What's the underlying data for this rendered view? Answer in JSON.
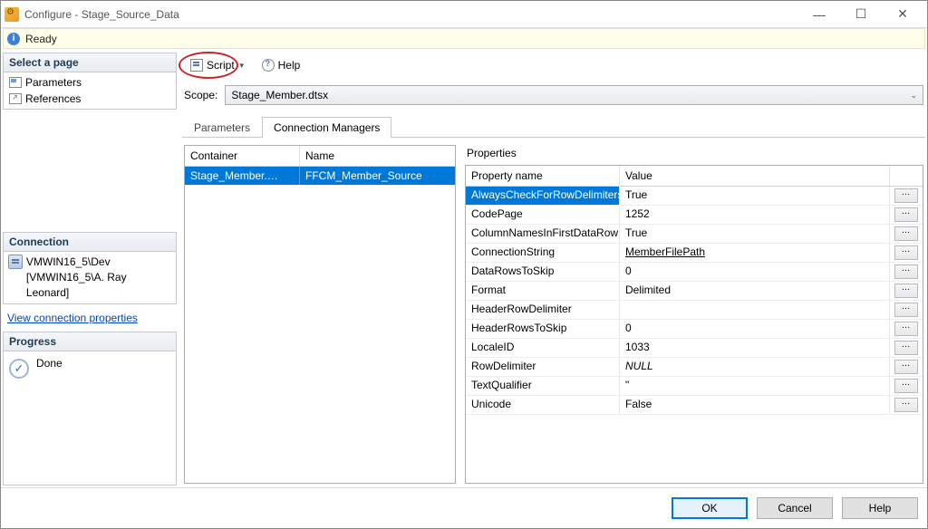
{
  "window": {
    "title": "Configure - Stage_Source_Data"
  },
  "status": {
    "text": "Ready"
  },
  "sidebar": {
    "select_page": "Select a page",
    "items": [
      "Parameters",
      "References"
    ],
    "connection_header": "Connection",
    "connection_server": "VMWIN16_5\\Dev",
    "connection_user": "[VMWIN16_5\\A. Ray Leonard]",
    "view_conn_link": "View connection properties",
    "progress_header": "Progress",
    "progress_text": "Done"
  },
  "toolbar": {
    "script": "Script",
    "help": "Help"
  },
  "scope": {
    "label": "Scope:",
    "value": "Stage_Member.dtsx"
  },
  "tabs": [
    "Parameters",
    "Connection Managers"
  ],
  "left_grid": {
    "cols": [
      "Container",
      "Name"
    ],
    "row": {
      "container": "Stage_Member.…",
      "name": "FFCM_Member_Source"
    }
  },
  "props": {
    "label": "Properties",
    "cols": [
      "Property name",
      "Value"
    ],
    "rows": [
      {
        "name": "AlwaysCheckForRowDelimiters",
        "value": "True",
        "selected": true
      },
      {
        "name": "CodePage",
        "value": "1252"
      },
      {
        "name": "ColumnNamesInFirstDataRow",
        "value": "True"
      },
      {
        "name": "ConnectionString",
        "value": "MemberFilePath",
        "underline": true
      },
      {
        "name": "DataRowsToSkip",
        "value": "0"
      },
      {
        "name": "Format",
        "value": "Delimited"
      },
      {
        "name": "HeaderRowDelimiter",
        "value": ""
      },
      {
        "name": "HeaderRowsToSkip",
        "value": "0"
      },
      {
        "name": "LocaleID",
        "value": "1033"
      },
      {
        "name": "RowDelimiter",
        "value": "NULL",
        "italic": true
      },
      {
        "name": "TextQualifier",
        "value": "\""
      },
      {
        "name": "Unicode",
        "value": "False"
      }
    ]
  },
  "footer": {
    "ok": "OK",
    "cancel": "Cancel",
    "help": "Help"
  }
}
